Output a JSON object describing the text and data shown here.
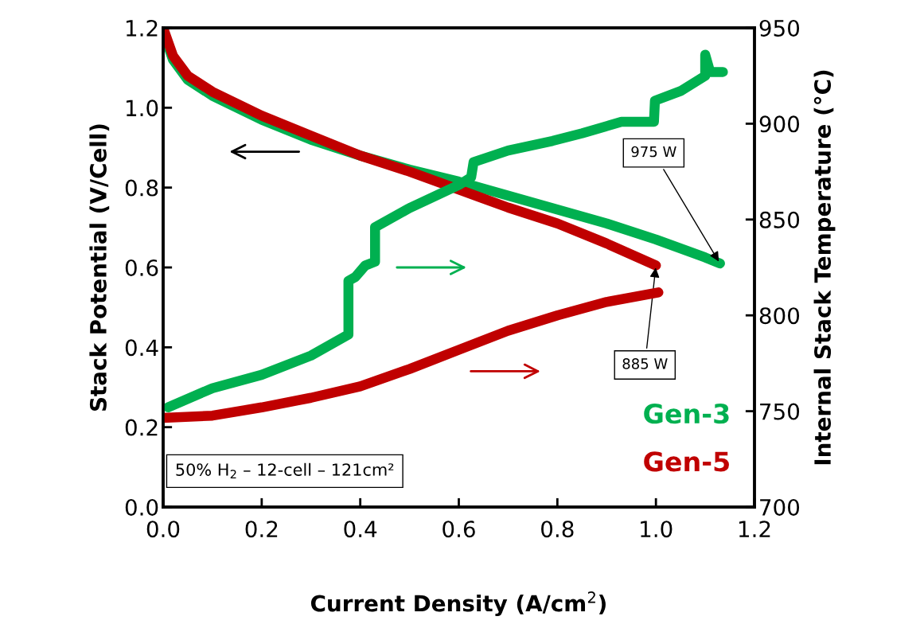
{
  "chart_data": {
    "type": "line",
    "xlabel": "Current Density (A/cm$^{2}$)",
    "ylabel": "Stack Potential (V/Cell)",
    "y2label": "Internal Stack Temperature (°C)",
    "xlim": [
      0,
      1.2
    ],
    "xticks": [
      {
        "value": 0,
        "label": "0.0"
      },
      0.2,
      0.4,
      0.6,
      0.8,
      {
        "value": 1,
        "label": "1.0"
      },
      1.2
    ],
    "ylim": [
      0,
      1.2
    ],
    "yticks": [
      {
        "value": 0,
        "label": "0.0"
      },
      0.2,
      0.4,
      0.6,
      0.8,
      {
        "value": 1,
        "label": "1.0"
      },
      1.2
    ],
    "y2lim": [
      700,
      950
    ],
    "y2ticks": [
      700,
      750,
      800,
      850,
      900,
      950
    ],
    "grid": false,
    "legend": false,
    "marker": "none",
    "line_style": "solid",
    "series": [
      {
        "name": "Gen-3",
        "color": "#00b050",
        "axis": "y",
        "x": [
          0.0,
          0.02,
          0.05,
          0.1,
          0.2,
          0.3,
          0.4,
          0.5,
          0.6,
          0.7,
          0.8,
          0.9,
          1.0,
          1.1,
          1.13
        ],
        "values": [
          1.19,
          1.12,
          1.07,
          1.03,
          0.97,
          0.92,
          0.88,
          0.845,
          0.815,
          0.78,
          0.745,
          0.71,
          0.67,
          0.625,
          0.61
        ]
      },
      {
        "name": "Gen-5",
        "color": "#c00000",
        "axis": "y",
        "x": [
          0.0,
          0.02,
          0.05,
          0.1,
          0.2,
          0.3,
          0.4,
          0.5,
          0.6,
          0.7,
          0.8,
          0.9,
          1.0
        ],
        "values": [
          1.2,
          1.13,
          1.08,
          1.04,
          0.98,
          0.93,
          0.88,
          0.84,
          0.795,
          0.75,
          0.71,
          0.66,
          0.605
        ]
      },
      {
        "color": "#00b050",
        "axis": "y2",
        "x": [
          0.01,
          0.1,
          0.2,
          0.3,
          0.376,
          0.376,
          0.39,
          0.41,
          0.43,
          0.43,
          0.5,
          0.6,
          0.625,
          0.63,
          0.7,
          0.79,
          0.85,
          0.93,
          0.996,
          0.998,
          1.05,
          1.1,
          1.1,
          1.11,
          1.136
        ],
        "values": [
          752,
          762,
          769,
          779,
          790,
          818,
          820,
          826,
          828,
          846,
          856,
          868,
          872,
          880,
          886,
          891,
          895,
          901,
          901,
          912,
          917,
          925,
          936,
          927,
          927
        ]
      },
      {
        "color": "#c00000",
        "axis": "y2",
        "x": [
          0.0,
          0.1,
          0.2,
          0.3,
          0.4,
          0.5,
          0.6,
          0.7,
          0.8,
          0.9,
          1.005
        ],
        "values": [
          746.5,
          747.7,
          752,
          757,
          763,
          772,
          782,
          792,
          800,
          807,
          812
        ]
      }
    ],
    "annotations": [
      {
        "text": "975 W",
        "x": 1.13,
        "y": 0.61
      },
      {
        "text": "885 W",
        "x": 1.0,
        "y": 0.605
      },
      "50% H$_{2}$ – 12-cell – 121cm²"
    ]
  }
}
